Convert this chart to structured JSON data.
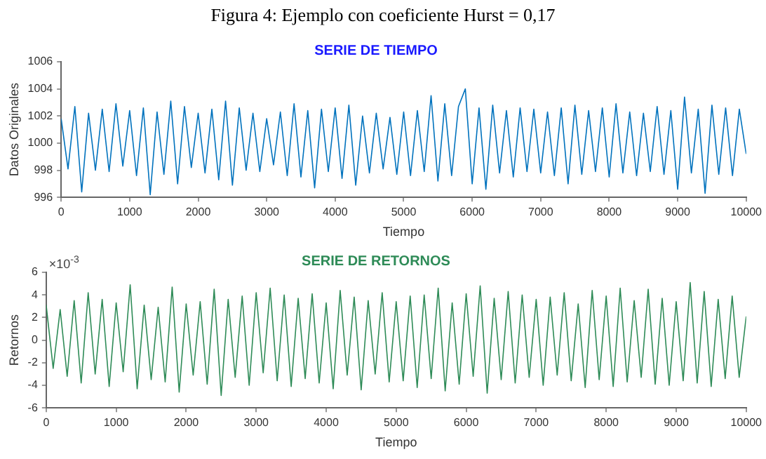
{
  "chart_data": [
    {
      "type": "line",
      "title": "SERIE DE TIEMPO",
      "xlabel": "Tiempo",
      "ylabel": "Datos Originales",
      "annotations": [
        "Figura 4: Ejemplo con coeficiente Hurst = 0,17"
      ],
      "x": [
        0,
        100,
        200,
        300,
        400,
        500,
        600,
        700,
        800,
        900,
        1000,
        1100,
        1200,
        1300,
        1400,
        1500,
        1600,
        1700,
        1800,
        1900,
        2000,
        2100,
        2200,
        2300,
        2400,
        2500,
        2600,
        2700,
        2800,
        2900,
        3000,
        3100,
        3200,
        3300,
        3400,
        3500,
        3600,
        3700,
        3800,
        3900,
        4000,
        4100,
        4200,
        4300,
        4400,
        4500,
        4600,
        4700,
        4800,
        4900,
        5000,
        5100,
        5200,
        5300,
        5400,
        5500,
        5600,
        5700,
        5800,
        5900,
        6000,
        6100,
        6200,
        6300,
        6400,
        6500,
        6600,
        6700,
        6800,
        6900,
        7000,
        7100,
        7200,
        7300,
        7400,
        7500,
        7600,
        7700,
        7800,
        7900,
        8000,
        8100,
        8200,
        8300,
        8400,
        8500,
        8600,
        8700,
        8800,
        8900,
        9000,
        9100,
        9200,
        9300,
        9400,
        9500,
        9600,
        9700,
        9800,
        9900,
        10000
      ],
      "series": [
        {
          "color": "#0072bd",
          "values": [
            1001.8,
            998.1,
            1002.7,
            996.4,
            1002.2,
            998.0,
            1002.5,
            997.9,
            1002.9,
            998.3,
            1002.4,
            997.6,
            1002.6,
            996.2,
            1002.3,
            997.7,
            1003.1,
            997.0,
            1002.7,
            998.2,
            1002.2,
            997.8,
            1002.5,
            997.3,
            1003.1,
            996.9,
            1002.6,
            998.0,
            1002.2,
            997.9,
            1001.8,
            998.4,
            1002.3,
            997.6,
            1002.9,
            997.5,
            1002.4,
            996.7,
            1002.5,
            997.9,
            1002.6,
            997.4,
            1002.8,
            996.9,
            1002.0,
            997.8,
            1002.2,
            998.1,
            1001.9,
            997.7,
            1002.3,
            997.6,
            1002.4,
            997.9,
            1003.5,
            997.2,
            1002.9,
            997.6,
            1002.7,
            1004.0,
            997.0,
            1002.6,
            996.6,
            1002.8,
            997.8,
            1002.4,
            997.5,
            1002.6,
            997.9,
            1002.5,
            997.8,
            1002.3,
            997.6,
            1002.6,
            997.0,
            1002.8,
            997.7,
            1002.4,
            997.9,
            1002.6,
            997.5,
            1002.9,
            997.8,
            1002.3,
            997.6,
            1002.2,
            997.9,
            1002.7,
            997.7,
            1002.4,
            996.6,
            1003.4,
            997.8,
            1002.5,
            996.3,
            1002.8,
            997.7,
            1002.6,
            997.6,
            1002.5,
            999.2
          ]
        }
      ],
      "xlim": [
        0,
        10000
      ],
      "xticks": [
        0,
        1000,
        2000,
        3000,
        4000,
        5000,
        6000,
        7000,
        8000,
        9000,
        10000
      ],
      "ylim": [
        996,
        1006
      ],
      "yticks": [
        996,
        998,
        1000,
        1002,
        1004,
        1006
      ],
      "grid": false,
      "legend": false
    },
    {
      "type": "line",
      "title": "SERIE DE RETORNOS",
      "xlabel": "Tiempo",
      "ylabel": "Retornos",
      "annotations": [
        "×10$^{-3}$"
      ],
      "x": [
        0,
        100,
        200,
        300,
        400,
        500,
        600,
        700,
        800,
        900,
        1000,
        1100,
        1200,
        1300,
        1400,
        1500,
        1600,
        1700,
        1800,
        1900,
        2000,
        2100,
        2200,
        2300,
        2400,
        2500,
        2600,
        2700,
        2800,
        2900,
        3000,
        3100,
        3200,
        3300,
        3400,
        3500,
        3600,
        3700,
        3800,
        3900,
        4000,
        4100,
        4200,
        4300,
        4400,
        4500,
        4600,
        4700,
        4800,
        4900,
        5000,
        5100,
        5200,
        5300,
        5400,
        5500,
        5600,
        5700,
        5800,
        5900,
        6000,
        6100,
        6200,
        6300,
        6400,
        6500,
        6600,
        6700,
        6800,
        6900,
        7000,
        7100,
        7200,
        7300,
        7400,
        7500,
        7600,
        7700,
        7800,
        7900,
        8000,
        8100,
        8200,
        8300,
        8400,
        8500,
        8600,
        8700,
        8800,
        8900,
        9000,
        9100,
        9200,
        9300,
        9400,
        9500,
        9600,
        9700,
        9800,
        9900,
        10000
      ],
      "series": [
        {
          "color": "#2e8b57",
          "values": [
            3.1,
            -2.5,
            2.7,
            -3.2,
            3.5,
            -3.8,
            4.2,
            -3.0,
            3.6,
            -4.1,
            3.3,
            -2.8,
            4.9,
            -4.3,
            3.1,
            -3.5,
            2.9,
            -3.7,
            4.7,
            -4.6,
            3.2,
            -3.1,
            3.4,
            -3.9,
            4.5,
            -4.9,
            3.6,
            -3.3,
            3.9,
            -4.0,
            4.2,
            -2.9,
            4.6,
            -3.6,
            4.0,
            -4.1,
            3.7,
            -3.4,
            4.1,
            -3.8,
            3.3,
            -4.3,
            4.4,
            -3.1,
            3.8,
            -4.4,
            3.5,
            -3.0,
            4.2,
            -3.7,
            3.4,
            -3.6,
            3.9,
            -4.2,
            4.0,
            -3.4,
            4.6,
            -4.5,
            3.3,
            -3.9,
            4.1,
            -3.2,
            4.8,
            -4.7,
            3.7,
            -3.5,
            4.3,
            -3.8,
            4.0,
            -3.3,
            3.6,
            -4.0,
            3.8,
            -3.1,
            4.2,
            -3.6,
            3.2,
            -4.2,
            4.4,
            -3.5,
            3.9,
            -4.1,
            4.6,
            -3.7,
            3.5,
            -3.3,
            4.5,
            -3.9,
            3.7,
            -4.0,
            3.4,
            -3.6,
            5.1,
            -3.8,
            4.3,
            -4.1,
            3.6,
            -3.4,
            3.9,
            -3.3,
            2.1
          ]
        }
      ],
      "xlim": [
        0,
        10000
      ],
      "xticks": [
        0,
        1000,
        2000,
        3000,
        4000,
        5000,
        6000,
        7000,
        8000,
        9000,
        10000
      ],
      "ylim": [
        -6,
        6
      ],
      "yticks": [
        -6,
        -4,
        -2,
        0,
        2,
        4,
        6
      ],
      "grid": false,
      "legend": false
    }
  ]
}
